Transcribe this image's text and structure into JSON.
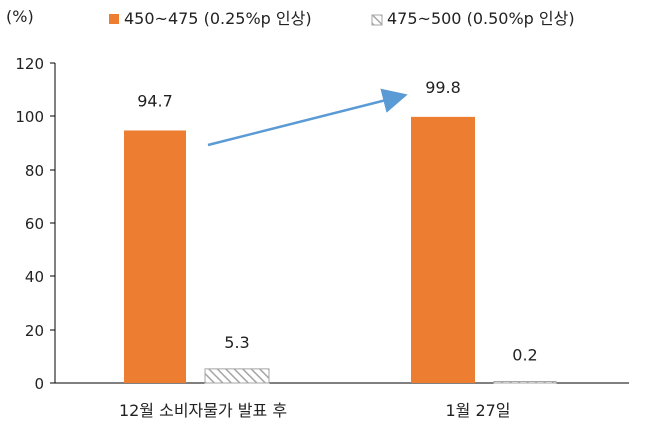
{
  "chart_data": {
    "type": "bar",
    "ylabel": "(%)",
    "ylim": [
      0,
      120
    ],
    "yticks": [
      0,
      20,
      40,
      60,
      80,
      100,
      120
    ],
    "categories": [
      "12월 소비자물가 발표 후",
      "1월 27일"
    ],
    "series": [
      {
        "name": "450~475 (0.25%p 인상)",
        "values": [
          94.7,
          99.8
        ],
        "color": "#ED7D31",
        "pattern": "solid"
      },
      {
        "name": "475~500 (0.50%p 인상)",
        "values": [
          5.3,
          0.2
        ],
        "color": "#A6A6A6",
        "pattern": "hatched"
      }
    ],
    "data_labels": [
      "94.7",
      "99.8",
      "5.3",
      "0.2"
    ],
    "annotation": {
      "type": "arrow",
      "from_series": "450~475 (0.25%p 인상)",
      "direction": "from first category to second category",
      "color": "#5B9BD5"
    },
    "legend_position": "top",
    "grid": false
  }
}
